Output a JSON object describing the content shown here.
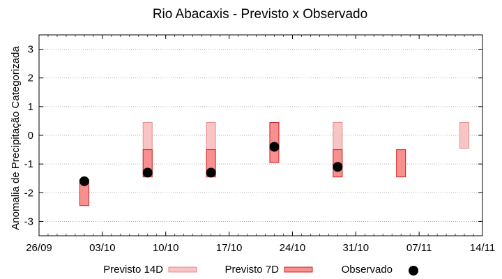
{
  "chart_data": {
    "type": "bar",
    "title": "Rio Abacaxis - Previsto x Observado",
    "xlabel": "",
    "ylabel": "Anomalia de Precipitação Categorizada",
    "ylim": [
      -3.5,
      3.5
    ],
    "yticks": [
      "3",
      "2",
      "1",
      "0",
      "-1",
      "-2",
      "-3"
    ],
    "ytick_values": [
      3,
      2,
      1,
      0,
      -1,
      -2,
      -3
    ],
    "xlim": [
      "2022-09-26",
      "2022-11-14"
    ],
    "xticks": [
      "26/09",
      "03/10",
      "10/10",
      "17/10",
      "24/10",
      "31/10",
      "07/11",
      "14/11"
    ],
    "xtick_dates": [
      "2022-09-26",
      "2022-10-03",
      "2022-10-10",
      "2022-10-17",
      "2022-10-24",
      "2022-10-31",
      "2022-11-07",
      "2022-11-14"
    ],
    "grid": true,
    "legend_position": "bottom",
    "series": [
      {
        "name": "Previsto 14D",
        "color": "#f8c4c4",
        "edge": "#e88a8a",
        "points": [
          {
            "x": "2022-10-08",
            "low": -1.45,
            "high": 0.45
          },
          {
            "x": "2022-10-15",
            "low": -1.45,
            "high": 0.45
          },
          {
            "x": "2022-10-22",
            "low": -0.95,
            "high": 0.45
          },
          {
            "x": "2022-10-29",
            "low": -1.45,
            "high": 0.45
          },
          {
            "x": "2022-11-12",
            "low": -0.45,
            "high": 0.45
          }
        ]
      },
      {
        "name": "Previsto 7D",
        "color": "#f89090",
        "edge": "#cc2020",
        "points": [
          {
            "x": "2022-10-01",
            "low": -2.45,
            "high": -1.55
          },
          {
            "x": "2022-10-08",
            "low": -1.45,
            "high": -0.5
          },
          {
            "x": "2022-10-15",
            "low": -1.45,
            "high": -0.5
          },
          {
            "x": "2022-10-22",
            "low": -0.95,
            "high": 0.45
          },
          {
            "x": "2022-10-29",
            "low": -1.45,
            "high": -0.5
          },
          {
            "x": "2022-11-05",
            "low": -1.45,
            "high": -0.5
          }
        ]
      },
      {
        "name": "Observado",
        "color": "#000000",
        "points": [
          {
            "x": "2022-10-01",
            "y": -1.6
          },
          {
            "x": "2022-10-08",
            "y": -1.3
          },
          {
            "x": "2022-10-15",
            "y": -1.3
          },
          {
            "x": "2022-10-22",
            "y": -0.4
          },
          {
            "x": "2022-10-29",
            "y": -1.1
          }
        ]
      }
    ]
  }
}
